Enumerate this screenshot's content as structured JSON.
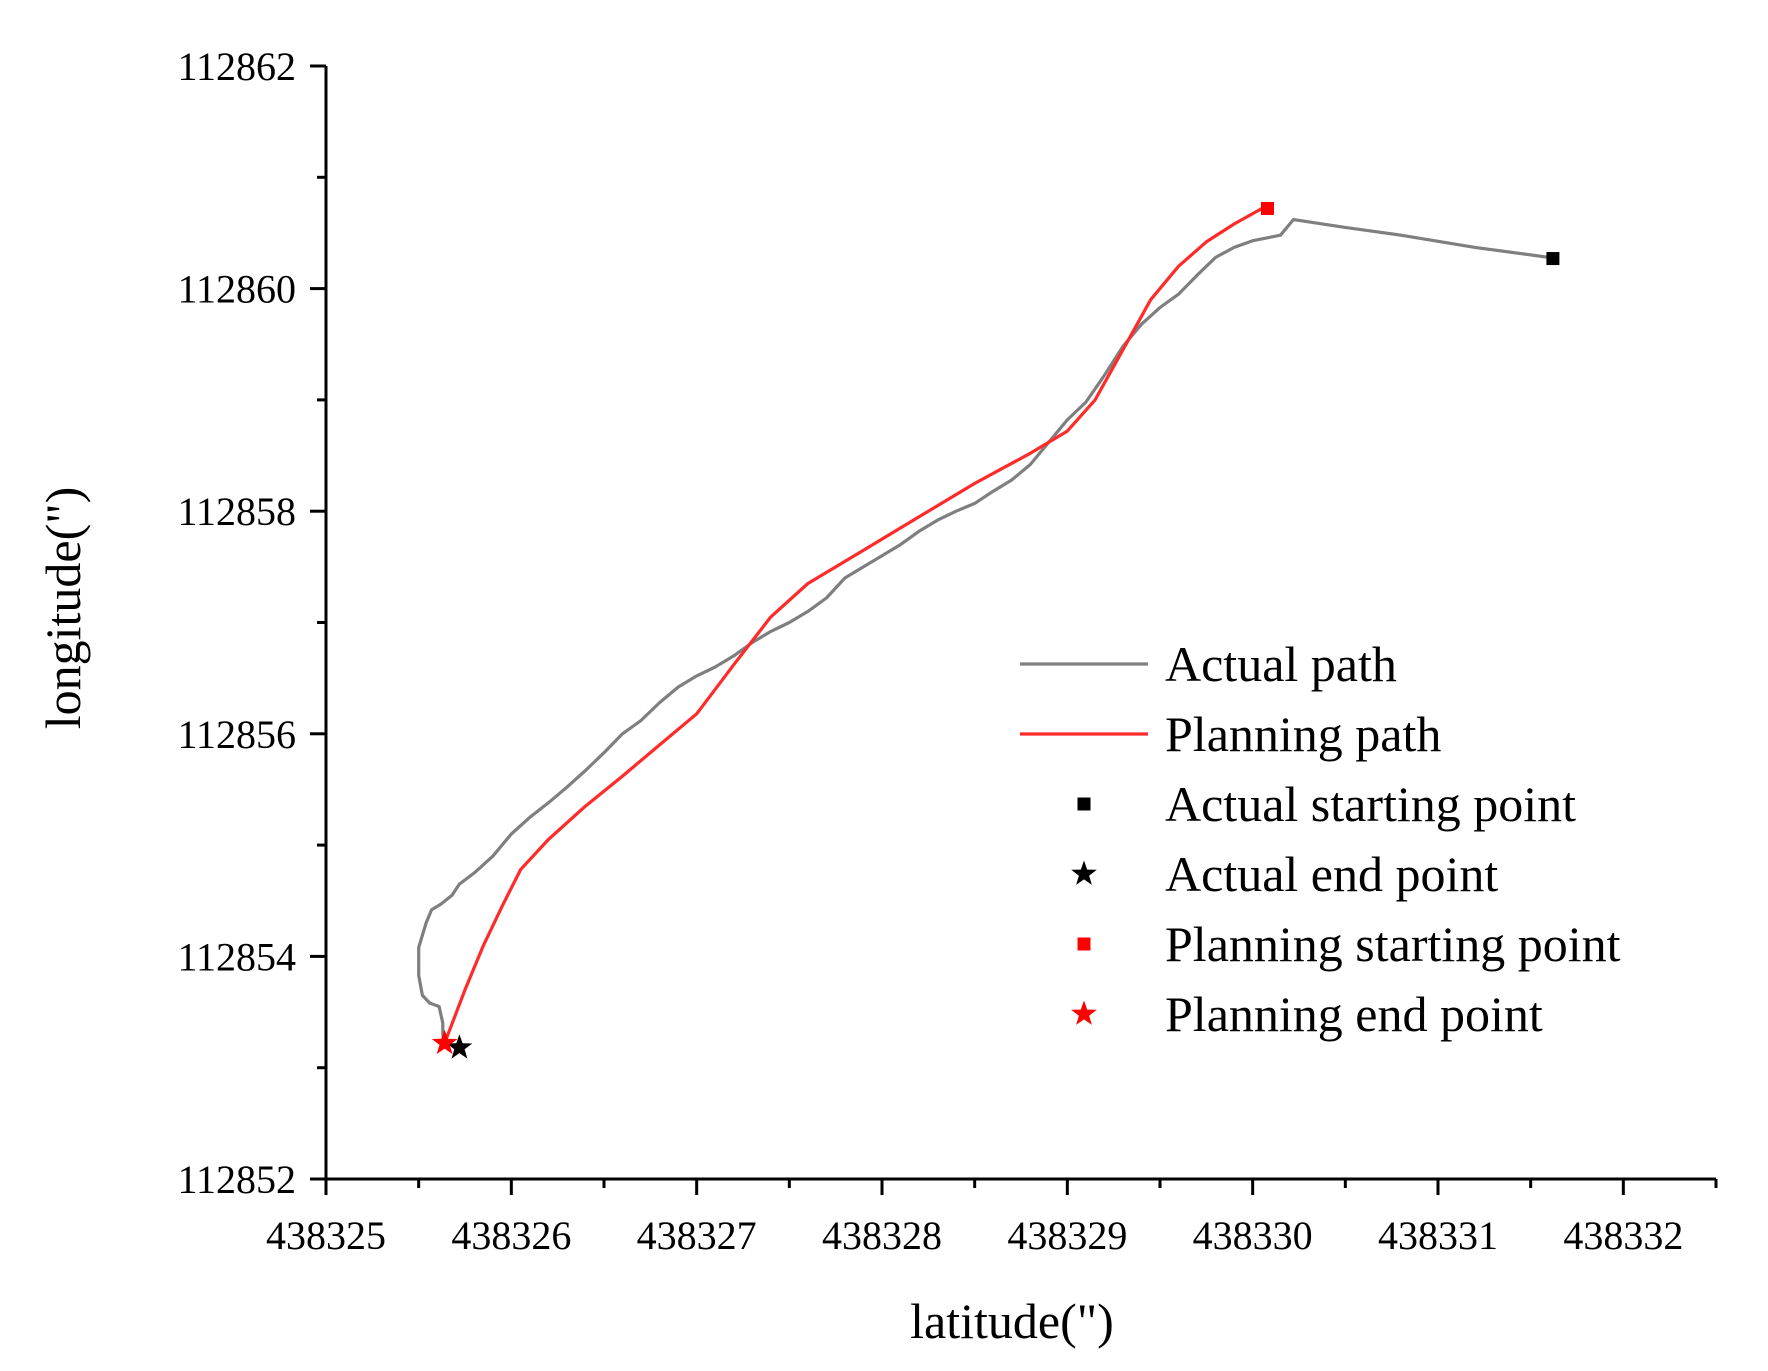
{
  "chart_data": {
    "type": "line",
    "title": "",
    "xlabel": "latitude(\")",
    "ylabel": "longitude(\")",
    "xlim": [
      438325,
      438332.5
    ],
    "ylim": [
      112852,
      112862
    ],
    "x_ticks": [
      438325,
      438326,
      438327,
      438328,
      438329,
      438330,
      438331,
      438332
    ],
    "x_tick_labels": [
      "438325",
      "438326",
      "438327",
      "438328",
      "438329",
      "438330",
      "438331",
      "438332"
    ],
    "y_ticks": [
      112852,
      112854,
      112856,
      112858,
      112860,
      112862
    ],
    "y_tick_labels": [
      "112852",
      "112854",
      "112856",
      "112858",
      "112860",
      "112862"
    ],
    "grid": false,
    "legend_position": "right",
    "colors": {
      "actual": "#7f7f7f",
      "planning": "#ff2a2a",
      "black": "#000000",
      "red": "#ff0000"
    },
    "series": [
      {
        "name": "Actual path",
        "kind": "line",
        "color": "#7f7f7f",
        "x": [
          438331.6,
          438331.2,
          438330.8,
          438330.5,
          438330.3,
          438330.22,
          438330.15,
          438330.0,
          438329.9,
          438329.8,
          438329.7,
          438329.6,
          438329.5,
          438329.4,
          438329.3,
          438329.2,
          438329.1,
          438329.0,
          438328.9,
          438328.8,
          438328.7,
          438328.6,
          438328.5,
          438328.4,
          438328.3,
          438328.2,
          438328.1,
          438328.0,
          438327.9,
          438327.8,
          438327.7,
          438327.6,
          438327.5,
          438327.4,
          438327.3,
          438327.2,
          438327.1,
          438327.0,
          438326.9,
          438326.8,
          438326.7,
          438326.6,
          438326.5,
          438326.4,
          438326.3,
          438326.2,
          438326.1,
          438326.0,
          438325.9,
          438325.8,
          438325.72,
          438325.68,
          438325.62,
          438325.57,
          438325.54,
          438325.5,
          438325.5,
          438325.52,
          438325.56,
          438325.61,
          438325.63,
          438325.63,
          438325.64
        ],
        "y": [
          112860.28,
          112860.37,
          112860.48,
          112860.55,
          112860.6,
          112860.62,
          112860.48,
          112860.43,
          112860.37,
          112860.28,
          112860.12,
          112859.95,
          112859.83,
          112859.68,
          112859.48,
          112859.22,
          112858.98,
          112858.82,
          112858.62,
          112858.42,
          112858.28,
          112858.18,
          112858.07,
          112858.0,
          112857.92,
          112857.82,
          112857.7,
          112857.6,
          112857.5,
          112857.4,
          112857.22,
          112857.1,
          112857.0,
          112856.92,
          112856.82,
          112856.7,
          112856.6,
          112856.52,
          112856.42,
          112856.28,
          112856.12,
          112856.0,
          112855.83,
          112855.67,
          112855.52,
          112855.38,
          112855.25,
          112855.1,
          112854.9,
          112854.75,
          112854.65,
          112854.55,
          112854.47,
          112854.42,
          112854.3,
          112854.08,
          112853.83,
          112853.65,
          112853.58,
          112853.55,
          112853.4,
          112853.3,
          112853.2
        ]
      },
      {
        "name": "Planning path",
        "kind": "line",
        "color": "#ff2a2a",
        "x": [
          438330.05,
          438329.9,
          438329.75,
          438329.6,
          438329.45,
          438329.3,
          438329.15,
          438329.0,
          438328.8,
          438328.5,
          438328.2,
          438327.9,
          438327.6,
          438327.4,
          438327.2,
          438327.0,
          438326.8,
          438326.6,
          438326.4,
          438326.2,
          438326.05,
          438325.95,
          438325.85,
          438325.75,
          438325.64
        ],
        "y": [
          112860.72,
          112860.58,
          112860.42,
          112860.2,
          112859.9,
          112859.45,
          112859.0,
          112858.72,
          112858.52,
          112858.25,
          112857.95,
          112857.65,
          112857.35,
          112857.05,
          112856.62,
          112856.18,
          112855.9,
          112855.62,
          112855.35,
          112855.05,
          112854.78,
          112854.45,
          112854.1,
          112853.7,
          112853.22
        ]
      },
      {
        "name": "Actual starting point",
        "kind": "marker",
        "marker": "square",
        "color": "#000000",
        "x": [
          438331.62
        ],
        "y": [
          112860.27
        ]
      },
      {
        "name": "Actual end point",
        "kind": "marker",
        "marker": "star",
        "color": "#000000",
        "x": [
          438325.72
        ],
        "y": [
          112853.18
        ]
      },
      {
        "name": "Planning starting point",
        "kind": "marker",
        "marker": "square",
        "color": "#ff0000",
        "x": [
          438330.08
        ],
        "y": [
          112860.72
        ]
      },
      {
        "name": "Planning end point",
        "kind": "marker",
        "marker": "star",
        "color": "#ff0000",
        "x": [
          438325.64
        ],
        "y": [
          112853.22
        ]
      }
    ]
  }
}
